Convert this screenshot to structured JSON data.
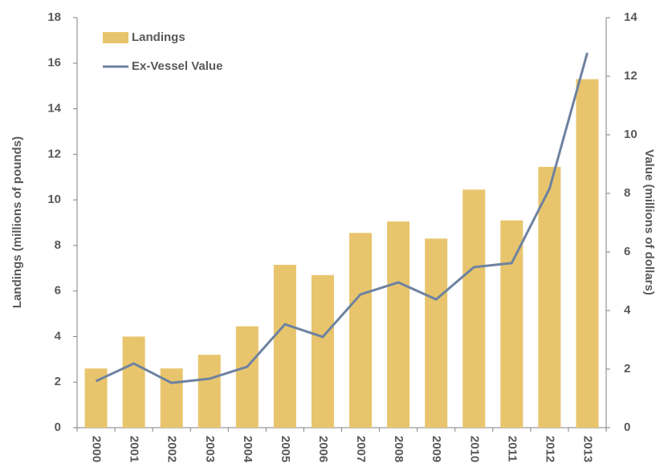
{
  "chart_data": {
    "type": "bar",
    "categories": [
      "2000",
      "2001",
      "2002",
      "2003",
      "2004",
      "2005",
      "2006",
      "2007",
      "2008",
      "2009",
      "2010",
      "2011",
      "2012",
      "2013"
    ],
    "series": [
      {
        "name": "Landings",
        "type": "bar",
        "color": "#e8c56d",
        "values": [
          2.6,
          4.0,
          2.6,
          3.2,
          4.45,
          7.15,
          6.7,
          8.55,
          9.05,
          8.3,
          10.45,
          9.1,
          11.45,
          15.3
        ]
      },
      {
        "name": "Ex-Vessel Value",
        "type": "line",
        "axis": "y2",
        "color": "#6e82a0",
        "values": [
          1.59,
          2.19,
          1.53,
          1.67,
          2.08,
          3.53,
          3.1,
          4.55,
          4.96,
          4.38,
          5.48,
          5.62,
          8.16,
          12.8
        ]
      }
    ],
    "ylabel": "Landings (millions of pounds)",
    "y2label": "Value (millions of dollars)",
    "ylim": [
      0,
      18
    ],
    "yticks": [
      0,
      2,
      4,
      6,
      8,
      10,
      12,
      14,
      16,
      18
    ],
    "y2lim": [
      0,
      14
    ],
    "y2ticks": [
      0,
      2,
      4,
      6,
      8,
      10,
      12,
      14
    ],
    "legend": "top-left"
  }
}
